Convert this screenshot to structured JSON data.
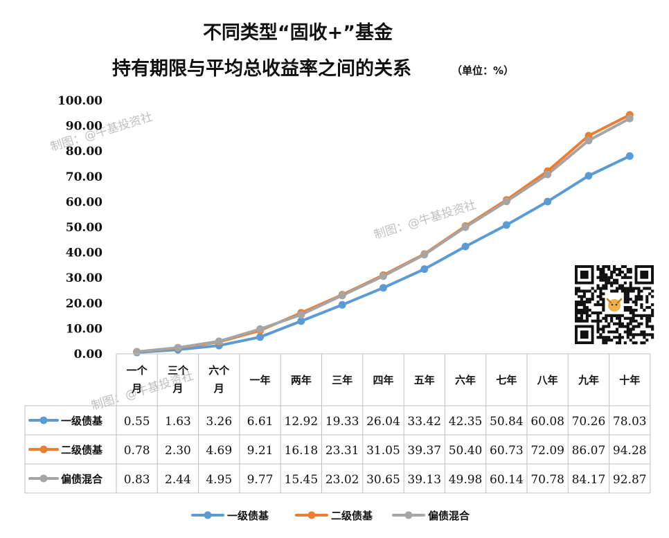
{
  "title": {
    "line1": "不同类型“固收+”基金",
    "line2": "持有期限与平均总收益率之间的关系",
    "unit": "（单位：%）"
  },
  "watermark": "制图：@牛基投资社",
  "chart_data": {
    "type": "line",
    "categories": [
      [
        "一个",
        "月"
      ],
      [
        "三个",
        "月"
      ],
      [
        "六个",
        "月"
      ],
      [
        "一年"
      ],
      [
        "两年"
      ],
      [
        "三年"
      ],
      [
        "四年"
      ],
      [
        "五年"
      ],
      [
        "六年"
      ],
      [
        "七年"
      ],
      [
        "八年"
      ],
      [
        "九年"
      ],
      [
        "十年"
      ]
    ],
    "ylim": [
      0,
      100
    ],
    "yticks": [
      "0.00",
      "10.00",
      "20.00",
      "30.00",
      "40.00",
      "50.00",
      "60.00",
      "70.00",
      "80.00",
      "90.00",
      "100.00"
    ],
    "legend_position": "bottom",
    "grid": false,
    "series": [
      {
        "name": "一级债基",
        "color": "#5b9bd5",
        "values": [
          0.55,
          1.63,
          3.26,
          6.61,
          12.92,
          19.33,
          26.04,
          33.42,
          42.35,
          50.84,
          60.08,
          70.26,
          78.03
        ],
        "labels": [
          "0.55",
          "1.63",
          "3.26",
          "6.61",
          "12.92",
          "19.33",
          "26.04",
          "33.42",
          "42.35",
          "50.84",
          "60.08",
          "70.26",
          "78.03"
        ]
      },
      {
        "name": "二级债基",
        "color": "#ed7d31",
        "values": [
          0.78,
          2.3,
          4.69,
          9.21,
          16.18,
          23.31,
          31.05,
          39.37,
          50.4,
          60.73,
          72.09,
          86.07,
          94.28
        ],
        "labels": [
          "0.78",
          "2.30",
          "4.69",
          "9.21",
          "16.18",
          "23.31",
          "31.05",
          "39.37",
          "50.40",
          "60.73",
          "72.09",
          "86.07",
          "94.28"
        ]
      },
      {
        "name": "偏债混合",
        "color": "#a5a5a5",
        "values": [
          0.83,
          2.44,
          4.95,
          9.77,
          15.45,
          23.02,
          30.65,
          39.13,
          49.98,
          60.14,
          70.78,
          84.17,
          92.87
        ],
        "labels": [
          "0.83",
          "2.44",
          "4.95",
          "9.77",
          "15.45",
          "23.02",
          "30.65",
          "39.13",
          "49.98",
          "60.14",
          "70.78",
          "84.17",
          "92.87"
        ]
      }
    ]
  }
}
